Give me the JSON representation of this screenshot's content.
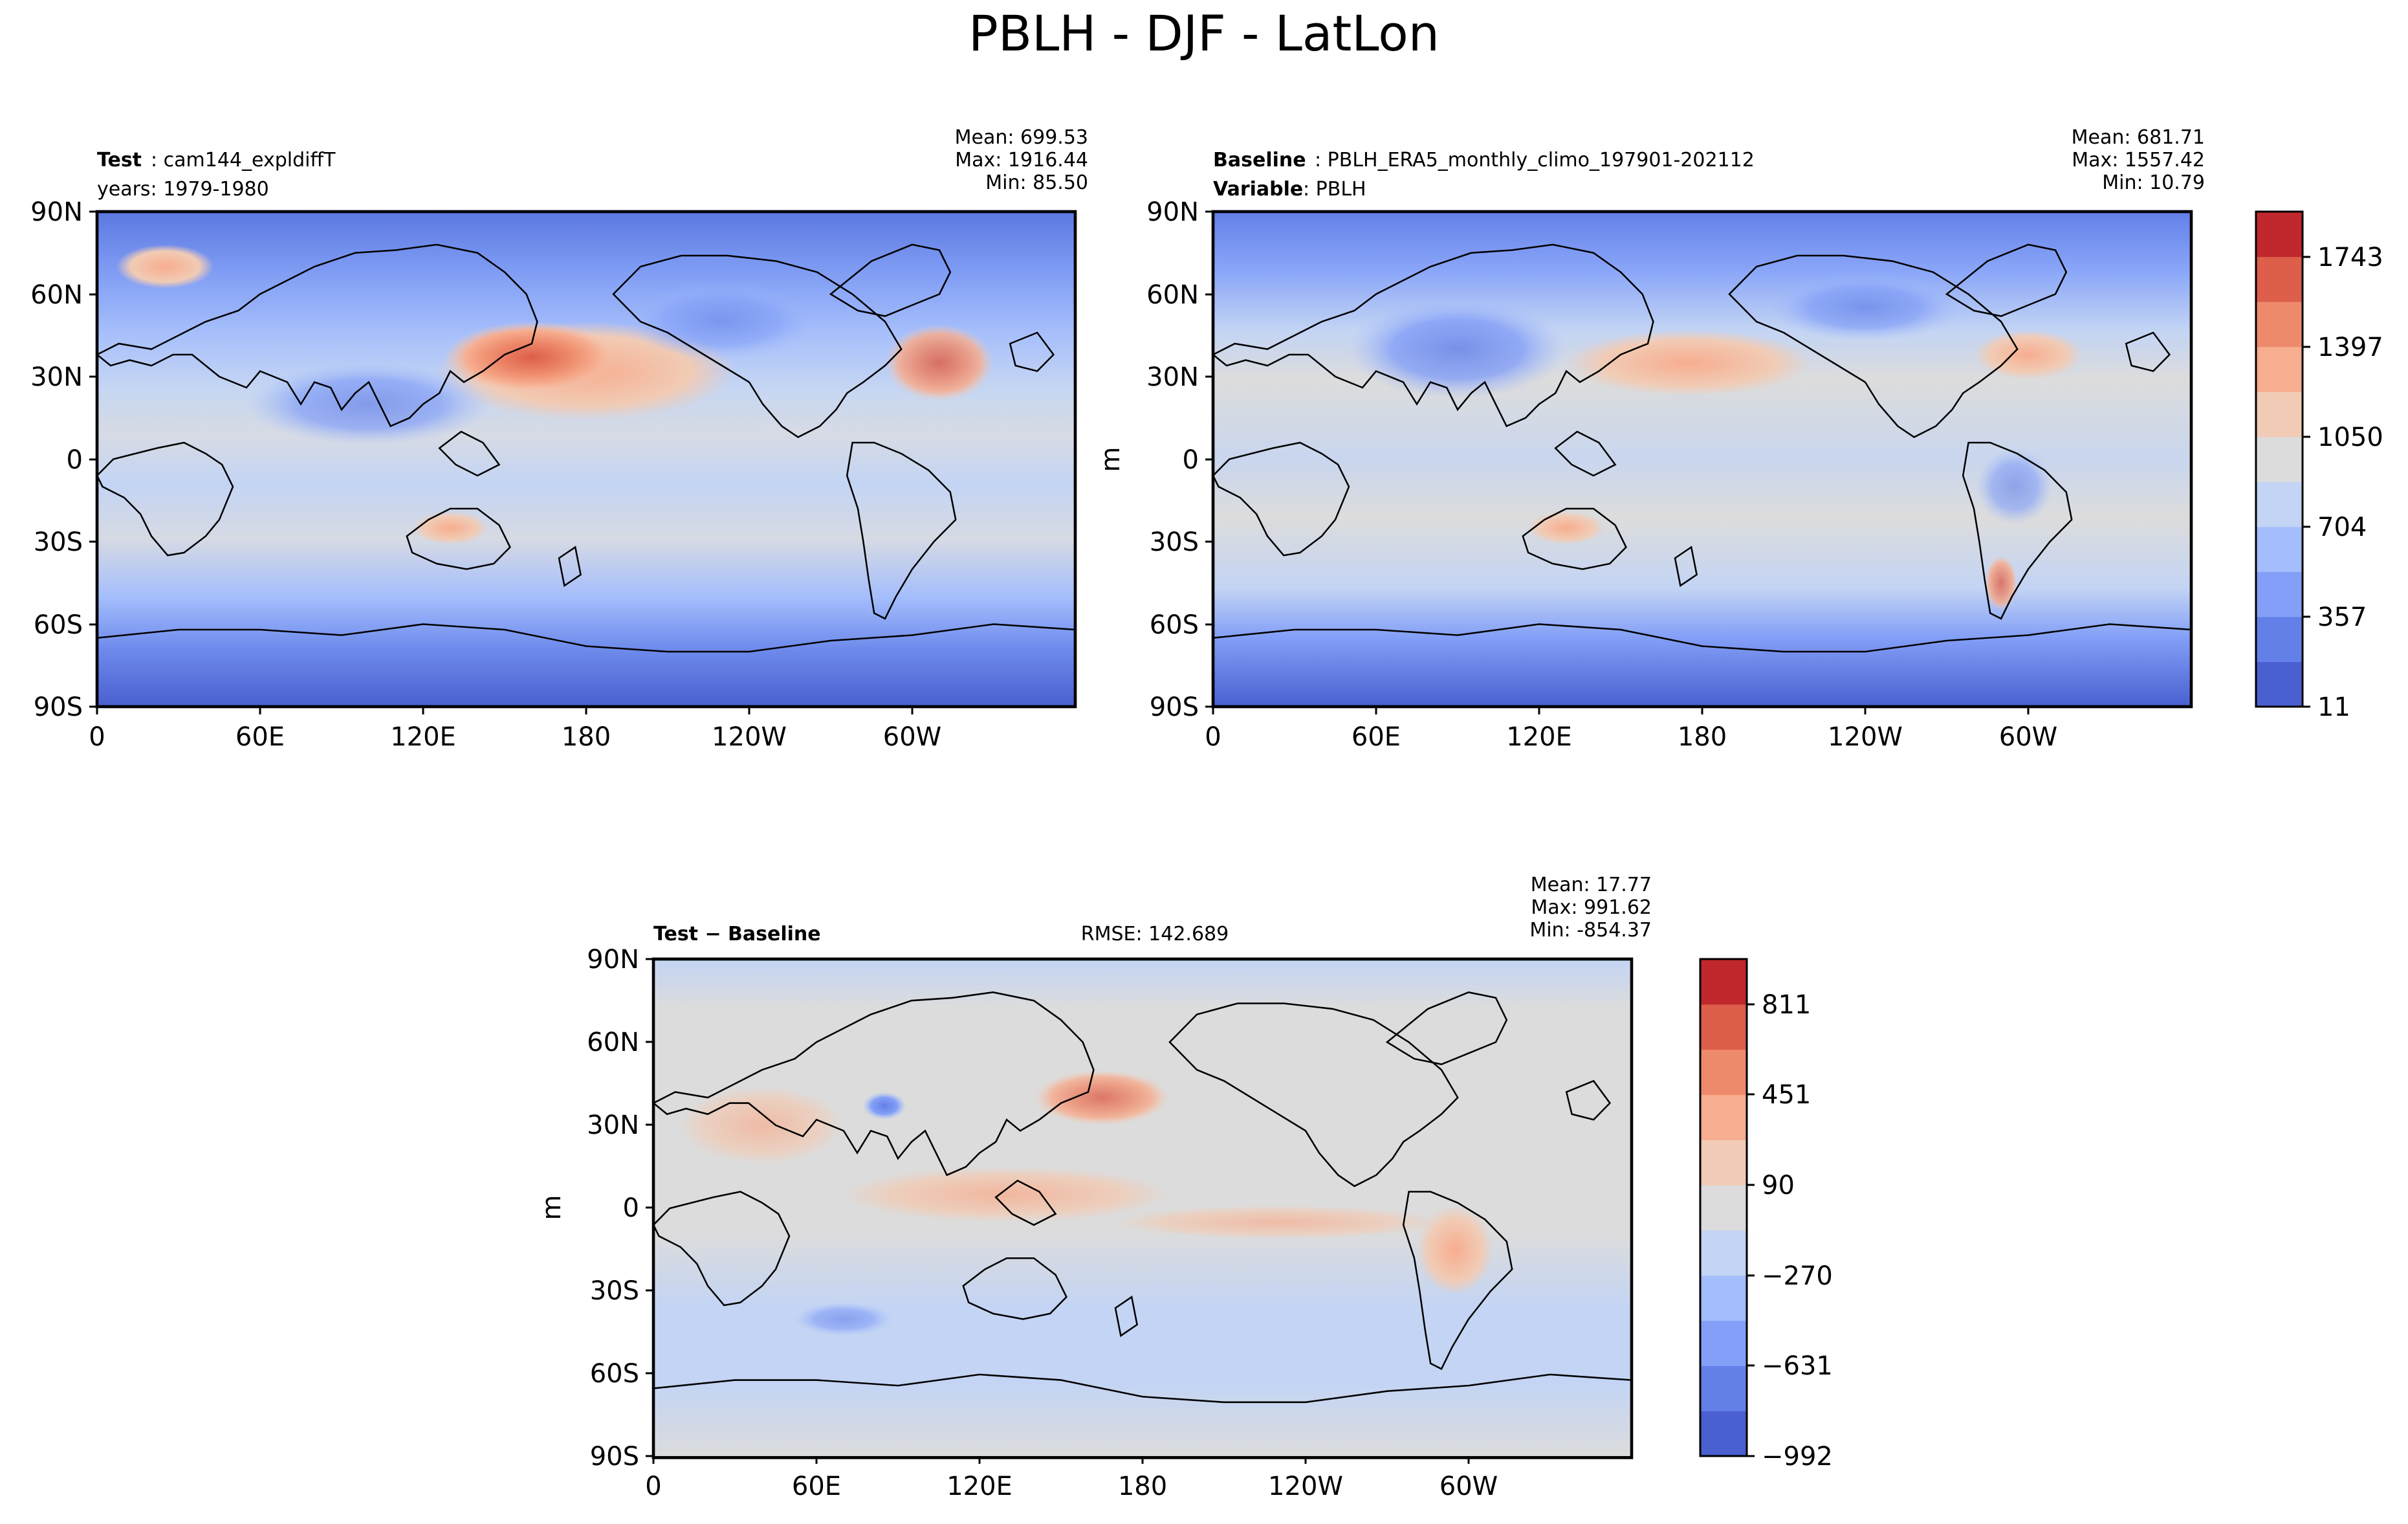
{
  "figure": {
    "title": "PBLH - DJF - LatLon"
  },
  "chart_data": [
    {
      "type": "heatmap",
      "panel": "test",
      "left_title_bold": "Test",
      "left_title_value": "cam144_expldiffT",
      "left_subtitle": "years: 1979-1980",
      "stats": [
        "Mean: 699.53",
        "Max: 1916.44",
        "Min: 85.50"
      ],
      "ylabel": "",
      "xticks": [
        "0",
        "60E",
        "120E",
        "180",
        "120W",
        "60W"
      ],
      "yticks": [
        "90N",
        "60N",
        "30N",
        "0",
        "30S",
        "60S",
        "90S"
      ],
      "xlim": [
        0,
        360
      ],
      "ylim": [
        -90,
        90
      ],
      "colormap": "coolwarm",
      "levels": [
        11,
        357,
        704,
        1050,
        1397,
        1743
      ]
    },
    {
      "type": "heatmap",
      "panel": "baseline",
      "left_title_bold": "Baseline",
      "left_title_value": "PBLH_ERA5_monthly_climo_197901-202112",
      "left_subtitle_bold": "Variable",
      "left_subtitle_value": "PBLH",
      "stats": [
        "Mean: 681.71",
        "Max: 1557.42",
        "Min: 10.79"
      ],
      "ylabel": "m",
      "xticks": [
        "0",
        "60E",
        "120E",
        "180",
        "120W",
        "60W"
      ],
      "yticks": [
        "90N",
        "60N",
        "30N",
        "0",
        "30S",
        "60S",
        "90S"
      ],
      "xlim": [
        0,
        360
      ],
      "ylim": [
        -90,
        90
      ],
      "colormap": "coolwarm",
      "colorbar_ticks": [
        "11",
        "357",
        "704",
        "1050",
        "1397",
        "1743"
      ],
      "colorbar_levels": [
        11,
        357,
        704,
        1050,
        1397,
        1743
      ]
    },
    {
      "type": "heatmap",
      "panel": "difference",
      "left_title": "Test − Baseline",
      "center_title": "RMSE: 142.689",
      "stats": [
        "Mean: 17.77",
        "Max: 991.62",
        "Min: -854.37"
      ],
      "ylabel": "m",
      "xticks": [
        "0",
        "60E",
        "120E",
        "180",
        "120W",
        "60W"
      ],
      "yticks": [
        "90N",
        "60N",
        "30N",
        "0",
        "30S",
        "60S",
        "90S"
      ],
      "xlim": [
        0,
        360
      ],
      "ylim": [
        -90,
        90
      ],
      "colormap": "coolwarm",
      "colorbar_ticks": [
        "811",
        "451",
        "90",
        "−270",
        "−631",
        "−992"
      ],
      "colorbar_levels": [
        811,
        451,
        90,
        -270,
        -631,
        -992
      ]
    }
  ],
  "colors": {
    "cmap11": [
      "#4a5fd0",
      "#6380e8",
      "#839ff7",
      "#a4bdfc",
      "#c3d4f4",
      "#dcdcdc",
      "#f1cbb5",
      "#f7ad8f",
      "#ee8a6c",
      "#dc5e4b",
      "#c0282d"
    ]
  }
}
